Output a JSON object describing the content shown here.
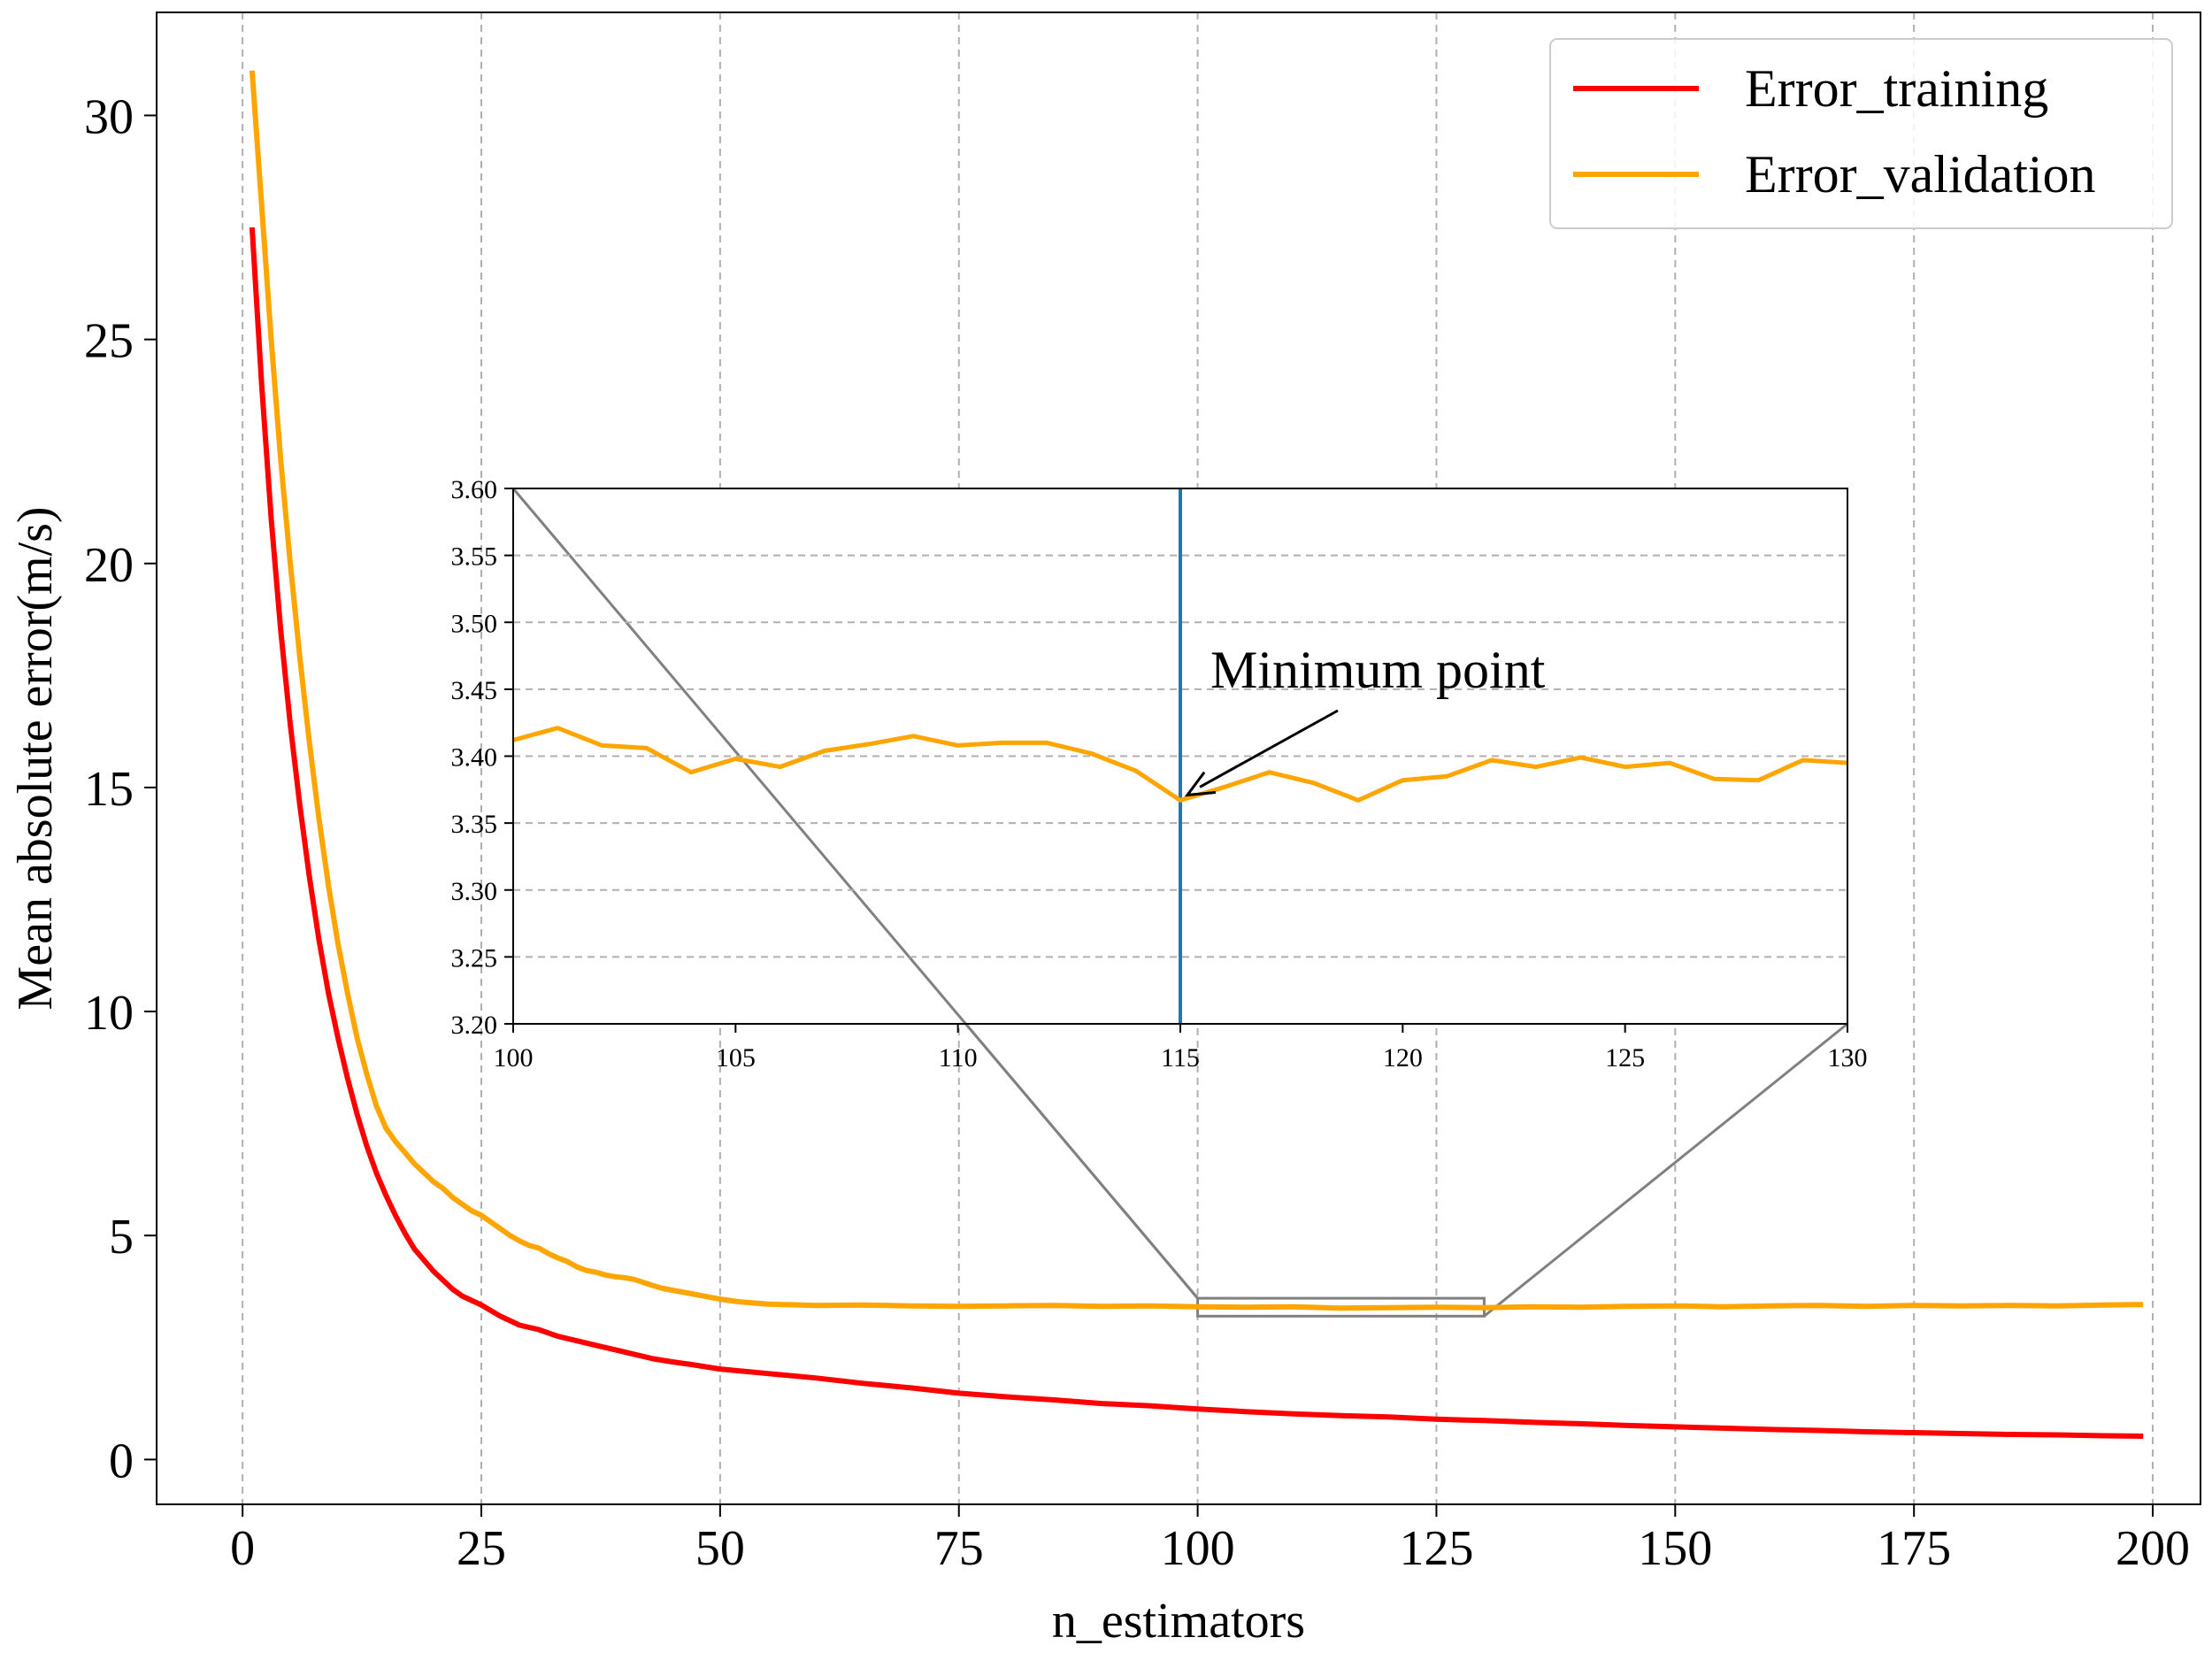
{
  "chart_data": {
    "type": "line",
    "xlabel": "n_estimators",
    "ylabel": "Mean absolute error(m/s)",
    "xlim": [
      -9,
      205
    ],
    "ylim": [
      -1.0,
      32.3
    ],
    "xticks": [
      0,
      25,
      50,
      75,
      100,
      125,
      150,
      175,
      200
    ],
    "yticks": [
      0,
      5,
      10,
      15,
      20,
      25,
      30
    ],
    "grid": "vertical dashed",
    "legend_position": "top-right",
    "series": [
      {
        "name": "Error_training",
        "color": "#ff0000",
        "x": [
          1,
          2,
          3,
          4,
          5,
          6,
          7,
          8,
          9,
          10,
          11,
          12,
          13,
          14,
          15,
          16,
          17,
          18,
          19,
          20,
          21,
          22,
          23,
          24,
          25,
          27,
          29,
          31,
          33,
          35,
          37,
          39,
          41,
          43,
          45,
          47,
          50,
          55,
          60,
          65,
          70,
          75,
          80,
          85,
          90,
          95,
          100,
          105,
          110,
          115,
          120,
          125,
          130,
          135,
          140,
          145,
          150,
          155,
          160,
          165,
          170,
          175,
          180,
          185,
          190,
          195,
          199
        ],
        "y": [
          27.5,
          24.0,
          21.0,
          18.5,
          16.4,
          14.6,
          13.0,
          11.6,
          10.4,
          9.4,
          8.5,
          7.7,
          7.0,
          6.4,
          5.9,
          5.45,
          5.05,
          4.7,
          4.45,
          4.2,
          4.0,
          3.8,
          3.65,
          3.55,
          3.45,
          3.2,
          3.0,
          2.9,
          2.75,
          2.65,
          2.55,
          2.45,
          2.35,
          2.25,
          2.18,
          2.12,
          2.02,
          1.92,
          1.82,
          1.7,
          1.6,
          1.48,
          1.4,
          1.33,
          1.25,
          1.2,
          1.13,
          1.07,
          1.02,
          0.98,
          0.95,
          0.9,
          0.87,
          0.83,
          0.8,
          0.76,
          0.73,
          0.7,
          0.67,
          0.65,
          0.62,
          0.6,
          0.58,
          0.56,
          0.55,
          0.53,
          0.52
        ]
      },
      {
        "name": "Error_validation",
        "color": "#ffa500",
        "x": [
          1,
          2,
          3,
          4,
          5,
          6,
          7,
          8,
          9,
          10,
          11,
          12,
          13,
          14,
          15,
          16,
          17,
          18,
          19,
          20,
          21,
          22,
          23,
          24,
          25,
          26,
          27,
          28,
          29,
          30,
          31,
          32,
          33,
          34,
          35,
          36,
          37,
          38,
          39,
          40,
          41,
          42,
          43,
          44,
          45,
          46,
          47,
          48,
          49,
          50,
          52,
          55,
          60,
          65,
          70,
          75,
          80,
          85,
          90,
          95,
          100,
          105,
          110,
          115,
          120,
          125,
          130,
          135,
          140,
          145,
          150,
          155,
          160,
          165,
          170,
          175,
          180,
          185,
          190,
          195,
          199
        ],
        "y": [
          31.0,
          28.0,
          25.0,
          22.3,
          20.0,
          17.9,
          16.0,
          14.3,
          12.8,
          11.5,
          10.4,
          9.4,
          8.6,
          7.9,
          7.4,
          7.1,
          6.85,
          6.6,
          6.4,
          6.2,
          6.05,
          5.85,
          5.7,
          5.55,
          5.45,
          5.3,
          5.15,
          5.0,
          4.88,
          4.78,
          4.72,
          4.6,
          4.5,
          4.42,
          4.3,
          4.22,
          4.18,
          4.12,
          4.08,
          4.06,
          4.02,
          3.95,
          3.88,
          3.82,
          3.78,
          3.74,
          3.7,
          3.66,
          3.62,
          3.58,
          3.52,
          3.47,
          3.44,
          3.45,
          3.43,
          3.42,
          3.43,
          3.44,
          3.42,
          3.43,
          3.41,
          3.4,
          3.41,
          3.38,
          3.39,
          3.4,
          3.39,
          3.41,
          3.4,
          3.42,
          3.43,
          3.41,
          3.43,
          3.44,
          3.42,
          3.44,
          3.43,
          3.44,
          3.43,
          3.45,
          3.46
        ]
      }
    ],
    "inset": {
      "xlim": [
        100,
        130
      ],
      "ylim": [
        3.2,
        3.6
      ],
      "xticks": [
        "100",
        "105",
        "110",
        "115",
        "120",
        "125",
        "130"
      ],
      "yticks": [
        "3.20",
        "3.25",
        "3.30",
        "3.35",
        "3.40",
        "3.45",
        "3.50",
        "3.55",
        "3.60"
      ],
      "grid": "horizontal dashed",
      "vline_x": 115,
      "vline_color": "#1f77b4",
      "series": {
        "color": "#ffa500",
        "x": [
          100,
          101,
          102,
          103,
          104,
          105,
          106,
          107,
          108,
          109,
          110,
          111,
          112,
          113,
          114,
          115,
          116,
          117,
          118,
          119,
          120,
          121,
          122,
          123,
          124,
          125,
          126,
          127,
          128,
          129,
          130
        ],
        "y": [
          3.412,
          3.421,
          3.408,
          3.406,
          3.388,
          3.398,
          3.392,
          3.404,
          3.409,
          3.415,
          3.408,
          3.41,
          3.41,
          3.402,
          3.389,
          3.367,
          3.377,
          3.388,
          3.38,
          3.367,
          3.382,
          3.385,
          3.397,
          3.392,
          3.399,
          3.392,
          3.395,
          3.383,
          3.382,
          3.397,
          3.395
        ]
      },
      "annotation": {
        "text": "Minimum point",
        "x": 115,
        "y": 3.367
      }
    }
  }
}
